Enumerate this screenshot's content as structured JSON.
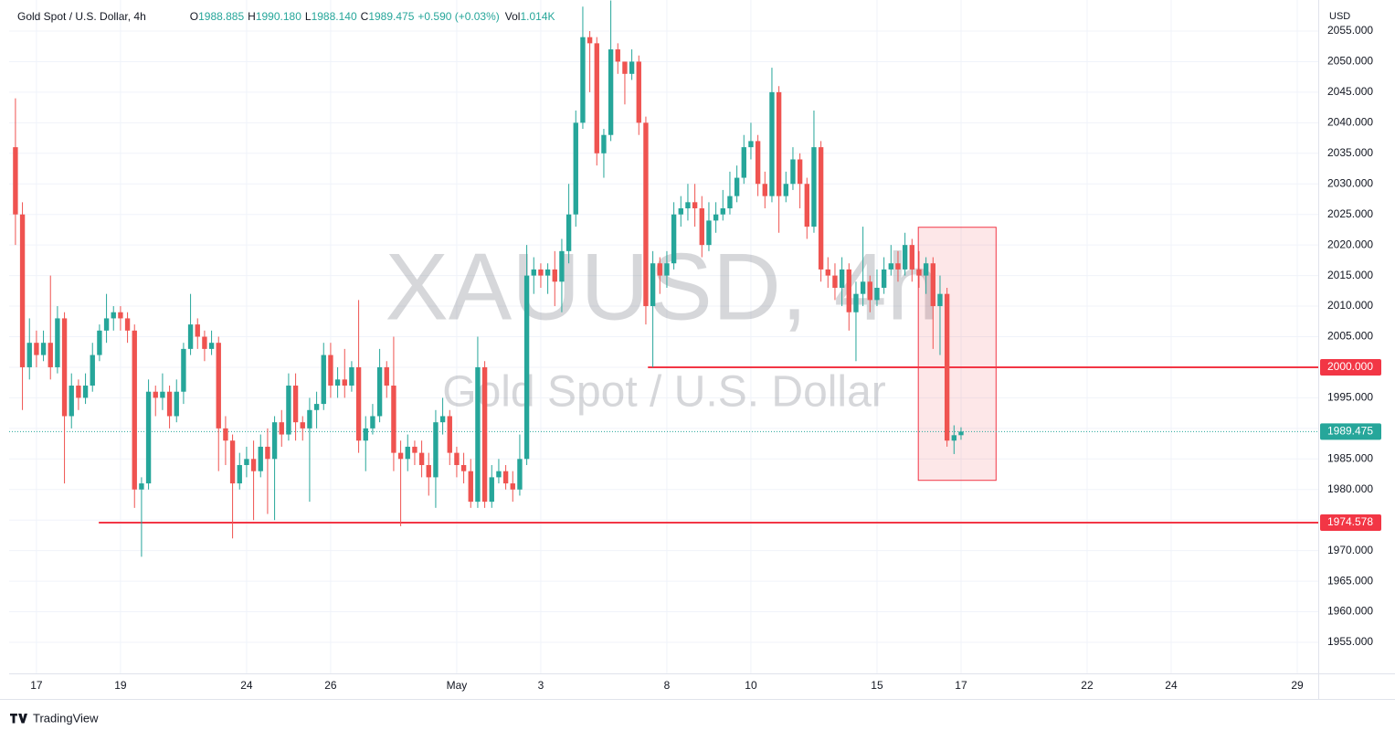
{
  "chart_data": {
    "type": "candlestick",
    "legend": {
      "symbol": "Gold Spot / U.S. Dollar, 4h",
      "items": [
        {
          "label": "O",
          "text": "1988.885"
        },
        {
          "label": "H",
          "text": "1990.180"
        },
        {
          "label": "L",
          "text": "1988.140"
        },
        {
          "label": "C",
          "text": "1989.475"
        }
      ],
      "change": "+0.590 (+0.03%)",
      "vol_label": "Vol",
      "vol": "1.014K"
    },
    "watermark": {
      "symbol": "XAUUSD, 4h",
      "description": "Gold Spot / U.S. Dollar"
    },
    "axis_currency": "USD",
    "brand": "TradingView",
    "up_color": "#26a69a",
    "down_color": "#ef5350",
    "x": [
      -3,
      -2,
      -1,
      0,
      1,
      2,
      3,
      4,
      5,
      6,
      7,
      8,
      9,
      10,
      11,
      12,
      13,
      14,
      15,
      16,
      17,
      18,
      19,
      20,
      21,
      22,
      23,
      24,
      25,
      26,
      27,
      28,
      29,
      30,
      31,
      32,
      33,
      34,
      35,
      36,
      37,
      38,
      39,
      40,
      41,
      42,
      43,
      44,
      45,
      46,
      47,
      48,
      49,
      50,
      51,
      52,
      53,
      54,
      55,
      56,
      57,
      58,
      59,
      60,
      61,
      62,
      63,
      64,
      65,
      66,
      67,
      68,
      69,
      70,
      71,
      72,
      73,
      74,
      75,
      76,
      77,
      78,
      79,
      80,
      81,
      82,
      83,
      84,
      85,
      86,
      87,
      88,
      89,
      90,
      91,
      92,
      93,
      94,
      95,
      96,
      97,
      98,
      99,
      100,
      101,
      102,
      103,
      104,
      105,
      106,
      107,
      108,
      109,
      110,
      111,
      112,
      113,
      114,
      115,
      116,
      117,
      118,
      119,
      120,
      121,
      122,
      123,
      124,
      125,
      126,
      127,
      128,
      129,
      130,
      131,
      132
    ],
    "open": [
      2036,
      2025,
      2000,
      2004,
      2002,
      2004,
      2000,
      2008,
      1992,
      1997,
      1995,
      1997,
      2002,
      2006,
      2008,
      2009,
      2008,
      2006,
      1980,
      1981,
      1996,
      1995,
      1996,
      1992,
      1996,
      2003,
      2007,
      2005,
      2003,
      2004,
      1990,
      1988,
      1981,
      1984,
      1985,
      1983,
      1987,
      1985,
      1991,
      1989,
      1997,
      1991,
      1990,
      1993,
      1994,
      2002,
      1997,
      1998,
      1997,
      2000,
      1988,
      1990,
      1992,
      2000,
      1997,
      1986,
      1985,
      1987,
      1986,
      1984,
      1982,
      1991,
      1992,
      1986,
      1984,
      1983,
      1978,
      2000,
      1978,
      1982,
      1983,
      1981,
      1980,
      1985,
      2015,
      2016,
      2015,
      2016,
      2014,
      2019,
      2025,
      2040,
      2054,
      2053,
      2035,
      2038,
      2052,
      2050,
      2048,
      2050,
      2040,
      2010,
      2017,
      2015,
      2017,
      2025,
      2026,
      2027,
      2026,
      2020,
      2024,
      2025,
      2026,
      2028,
      2031,
      2036,
      2037,
      2030,
      2028,
      2045,
      2028,
      2030,
      2034,
      2030,
      2023,
      2036,
      2016,
      2015,
      2013,
      2016,
      2009,
      2012,
      2014,
      2011,
      2013,
      2016,
      2017,
      2016,
      2020,
      2016,
      2015,
      2017,
      2010,
      2012,
      1988,
      1988.885
    ],
    "high": [
      2044,
      2027,
      2008,
      2006,
      2006,
      2015,
      2010,
      2009,
      1999,
      1998,
      1999,
      2004,
      2007,
      2012,
      2010,
      2010,
      2009,
      2007,
      1982,
      1998,
      1997,
      1999,
      1997,
      1998,
      2004,
      2012,
      2008,
      2006,
      2006,
      2005,
      1992,
      1989,
      1986,
      1987,
      1988,
      1989,
      1990,
      1992,
      1993,
      1999,
      1999,
      1992,
      1995,
      1996,
      2004,
      2004,
      2000,
      2003,
      2001,
      2011,
      1992,
      1994,
      2003,
      2001,
      2005,
      1988,
      1989,
      1988,
      1988,
      1986,
      1993,
      1995,
      1993,
      1987,
      1986,
      1985,
      2005,
      2001,
      1984,
      1985,
      1984,
      1983,
      1989,
      2020,
      2018,
      2017,
      2017,
      2019,
      2021,
      2030,
      2042,
      2059,
      2055,
      2054,
      2039,
      2060,
      2053,
      2050,
      2052,
      2051,
      2041,
      2019,
      2018,
      2019,
      2027,
      2028,
      2030,
      2030,
      2028,
      2027,
      2027,
      2029,
      2032,
      2033,
      2038,
      2040,
      2038,
      2032,
      2049,
      2046,
      2032,
      2036,
      2035,
      2031,
      2042,
      2037,
      2018,
      2017,
      2018,
      2017,
      2014,
      2023,
      2015,
      2016,
      2018,
      2020,
      2019,
      2022,
      2021,
      2019,
      2018,
      2018,
      2015,
      2013,
      1990.5,
      1990.18
    ],
    "low": [
      2020,
      1993,
      1998,
      2000,
      2001,
      1998,
      1999,
      1981,
      1990,
      1993,
      1994,
      1996,
      2001,
      2004,
      2006,
      2006,
      2004,
      1977,
      1969,
      1980,
      1992,
      1993,
      1990,
      1991,
      1994,
      2002,
      2003,
      2001,
      2002,
      1983,
      1984,
      1972,
      1980,
      1982,
      1975,
      1982,
      1976,
      1975,
      1987,
      1988,
      1988,
      1988,
      1978,
      1990,
      1993,
      1995,
      1995,
      1995,
      1996,
      1986,
      1983,
      1989,
      1991,
      1995,
      1983,
      1974,
      1983,
      1984,
      1982,
      1979,
      1977,
      1989,
      1984,
      1982,
      1981,
      1977,
      1977,
      1977,
      1977,
      1981,
      1980,
      1978,
      1979,
      1984,
      2012,
      2013,
      2012,
      2010,
      2009,
      2017,
      2023,
      2039,
      2045,
      2033,
      2031,
      2037,
      2048,
      2043,
      2047,
      2038,
      2007,
      2000,
      2012,
      2013,
      2016,
      2023,
      2024,
      2023,
      2018,
      2019,
      2022,
      2024,
      2025,
      2027,
      2030,
      2034,
      2028,
      2026,
      2027,
      2022,
      2027,
      2029,
      2026,
      2021,
      2022,
      2014,
      2013,
      2011,
      2010,
      2006,
      2001,
      2010,
      2009,
      2010,
      2012,
      2015,
      2014,
      2015,
      2014,
      2013,
      2012,
      2003,
      2002,
      1987,
      1985.8,
      1988.14
    ],
    "close": [
      2025,
      2000,
      2004,
      2002,
      2004,
      2000,
      2008,
      1992,
      1997,
      1995,
      1997,
      2002,
      2006,
      2008,
      2009,
      2008,
      2006,
      1980,
      1981,
      1996,
      1995,
      1996,
      1992,
      1996,
      2003,
      2007,
      2005,
      2003,
      2004,
      1990,
      1988,
      1981,
      1984,
      1985,
      1983,
      1987,
      1985,
      1991,
      1989,
      1997,
      1991,
      1990,
      1993,
      1994,
      2002,
      1997,
      1998,
      1997,
      2000,
      1988,
      1990,
      1992,
      2000,
      1997,
      1986,
      1985,
      1987,
      1986,
      1984,
      1982,
      1991,
      1992,
      1986,
      1984,
      1983,
      1978,
      2000,
      1978,
      1982,
      1983,
      1981,
      1980,
      1985,
      2015,
      2016,
      2015,
      2016,
      2014,
      2019,
      2025,
      2040,
      2054,
      2053,
      2035,
      2038,
      2052,
      2050,
      2048,
      2050,
      2040,
      2010,
      2017,
      2015,
      2017,
      2025,
      2026,
      2027,
      2026,
      2020,
      2024,
      2025,
      2026,
      2028,
      2031,
      2036,
      2037,
      2030,
      2028,
      2045,
      2028,
      2030,
      2034,
      2030,
      2023,
      2036,
      2016,
      2015,
      2013,
      2016,
      2009,
      2012,
      2014,
      2011,
      2013,
      2016,
      2017,
      2016,
      2020,
      2016,
      2015,
      2017,
      2010,
      2012,
      1988,
      1988.885,
      1989.475
    ],
    "xlim": [
      -3.9,
      183
    ],
    "xticks": [
      {
        "value": 0,
        "label": "17"
      },
      {
        "value": 12,
        "label": "19"
      },
      {
        "value": 30,
        "label": "24"
      },
      {
        "value": 42,
        "label": "26"
      },
      {
        "value": 60,
        "label": "May"
      },
      {
        "value": 72,
        "label": "3"
      },
      {
        "value": 90,
        "label": "8"
      },
      {
        "value": 102,
        "label": "10"
      },
      {
        "value": 120,
        "label": "15"
      },
      {
        "value": 132,
        "label": "17"
      },
      {
        "value": 150,
        "label": "22"
      },
      {
        "value": 162,
        "label": "24"
      },
      {
        "value": 180,
        "label": "29"
      }
    ],
    "ylim": [
      1949.92,
      2060.08
    ],
    "yticks": [
      {
        "value": 1955,
        "label": "1955.000"
      },
      {
        "value": 1960,
        "label": "1960.000"
      },
      {
        "value": 1965,
        "label": "1965.000"
      },
      {
        "value": 1970,
        "label": "1970.000"
      },
      {
        "value": 1975,
        "label": "1975.000"
      },
      {
        "value": 1980,
        "label": "1980.000"
      },
      {
        "value": 1985,
        "label": "1985.000"
      },
      {
        "value": 1990,
        "label": "1990.000"
      },
      {
        "value": 1995,
        "label": "1995.000"
      },
      {
        "value": 2000,
        "label": "2000.000"
      },
      {
        "value": 2005,
        "label": "2005.000"
      },
      {
        "value": 2010,
        "label": "2010.000"
      },
      {
        "value": 2015,
        "label": "2015.000"
      },
      {
        "value": 2020,
        "label": "2020.000"
      },
      {
        "value": 2025,
        "label": "2025.000"
      },
      {
        "value": 2030,
        "label": "2030.000"
      },
      {
        "value": 2035,
        "label": "2035.000"
      },
      {
        "value": 2040,
        "label": "2040.000"
      },
      {
        "value": 2045,
        "label": "2045.000"
      },
      {
        "value": 2050,
        "label": "2050.000"
      },
      {
        "value": 2055,
        "label": "2055.000"
      }
    ],
    "grid": true,
    "hlines": [
      {
        "value": 2000,
        "label": "2000.000",
        "from_x": 87.3,
        "color": "#f23645"
      },
      {
        "value": 1974.578,
        "label": "1974.578",
        "from_x": 8.9,
        "color": "#f23645"
      }
    ],
    "last_price": {
      "value": 1989.475,
      "label": "1989.475",
      "color": "#26a69a"
    },
    "rectangle": {
      "x": [
        125.9,
        137
      ],
      "y": [
        1981.5,
        2022.9
      ],
      "color": "#f23645"
    }
  }
}
